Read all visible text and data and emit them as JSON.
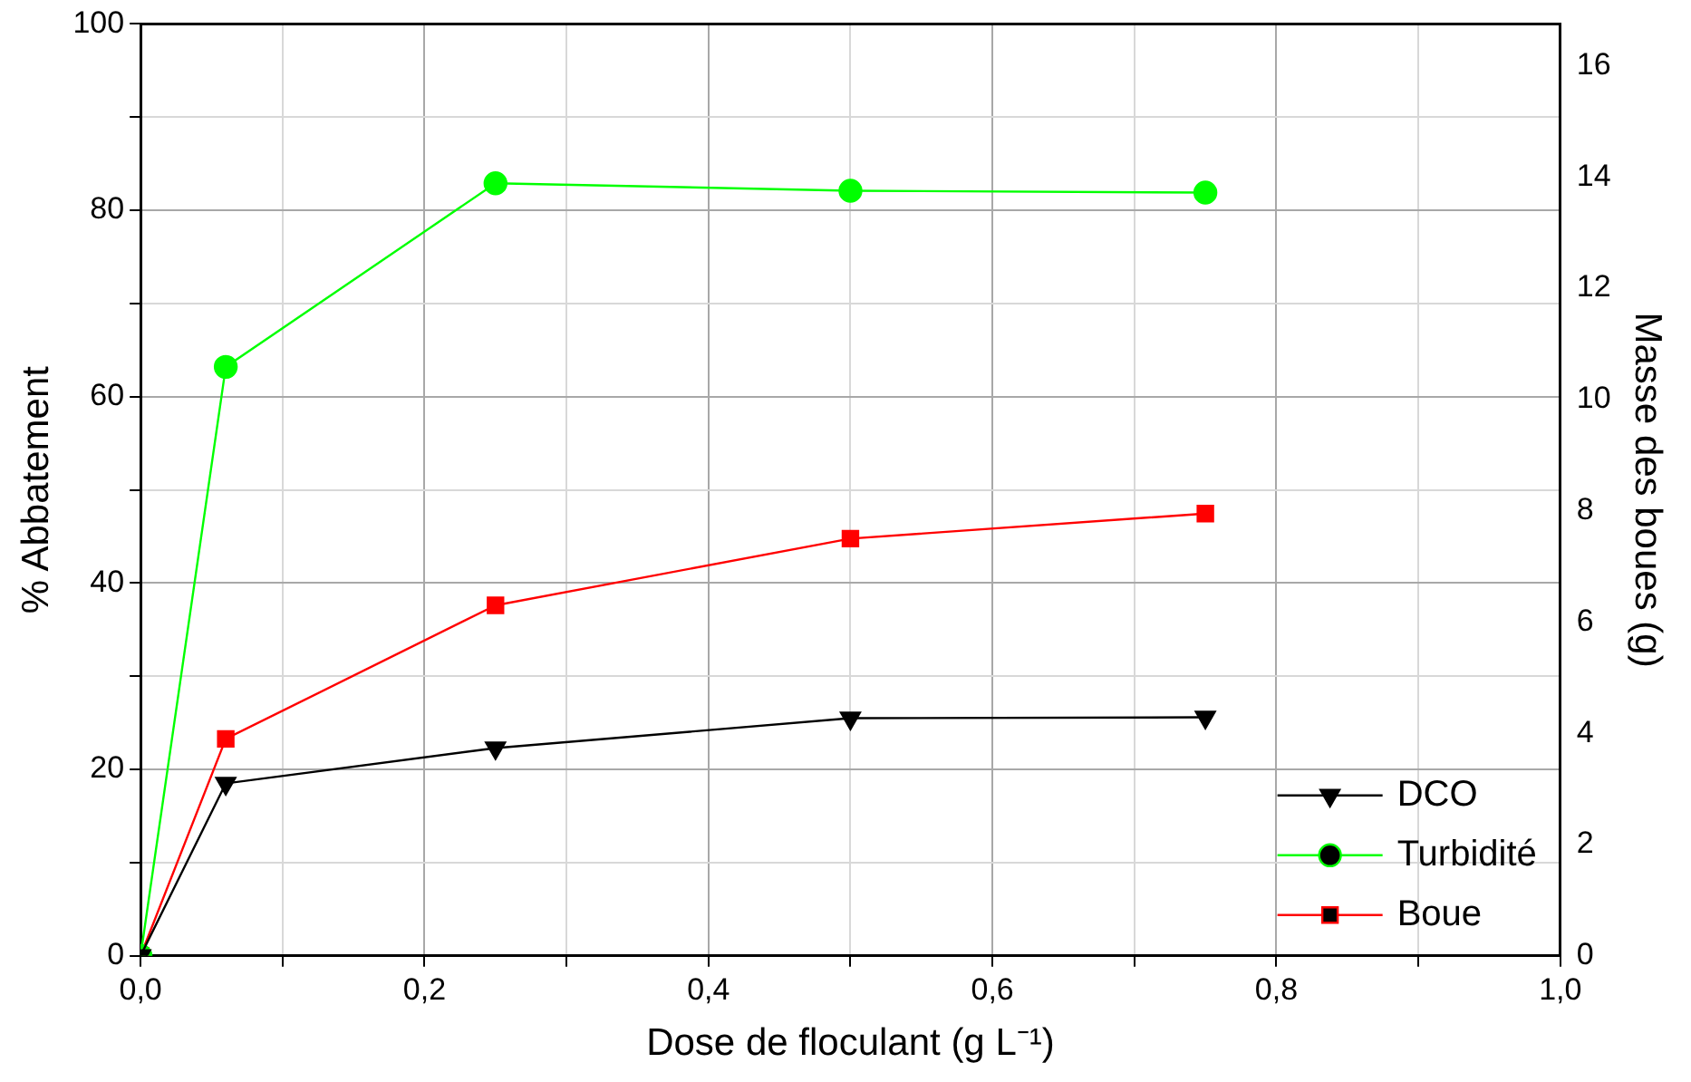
{
  "chart_data": {
    "type": "line",
    "xlabel": "Dose de floculant (g L⁻¹)",
    "ylabel": "% Abbatement",
    "y2label": "Masse des boues (g)",
    "x": [
      0,
      0.06,
      0.25,
      0.5,
      0.75
    ],
    "xlim": [
      0,
      1
    ],
    "xticks": [
      {
        "value": 0,
        "label": "0,0"
      },
      {
        "value": 0.1,
        "label": null
      },
      {
        "value": 0.2,
        "label": "0,2"
      },
      {
        "value": 0.3,
        "label": null
      },
      {
        "value": 0.4,
        "label": "0,4"
      },
      {
        "value": 0.5,
        "label": null
      },
      {
        "value": 0.6,
        "label": "0,6"
      },
      {
        "value": 0.7,
        "label": null
      },
      {
        "value": 0.8,
        "label": "0,8"
      },
      {
        "value": 0.9,
        "label": null
      },
      {
        "value": 1,
        "label": "1,0"
      }
    ],
    "ylim": [
      0,
      100
    ],
    "yticks": [
      0,
      {
        "value": 10,
        "label": null
      },
      20,
      {
        "value": 30,
        "label": null
      },
      40,
      {
        "value": 50,
        "label": null
      },
      60,
      {
        "value": 70,
        "label": null
      },
      80,
      {
        "value": 90,
        "label": null
      },
      100
    ],
    "y2lim": [
      0,
      16.75
    ],
    "y2ticks": [
      0,
      2,
      4,
      6,
      8,
      10,
      12,
      14,
      16
    ],
    "grid": true,
    "legend": "bottom right",
    "line_style": "solid",
    "series": [
      {
        "name": "DCO",
        "color": "#000000",
        "marker": "triangle",
        "values": [
          0,
          18.5,
          22.3,
          25.5,
          25.6
        ]
      },
      {
        "name": "Turbidité",
        "color": "#00ff00",
        "marker": "circle",
        "values": [
          0,
          63.2,
          82.9,
          82.1,
          81.9
        ]
      },
      {
        "name": "Boue",
        "color": "#ff0000",
        "marker": "square",
        "axis": "y2",
        "values": [
          0,
          3.9,
          6.3,
          7.5,
          7.95
        ]
      }
    ]
  }
}
